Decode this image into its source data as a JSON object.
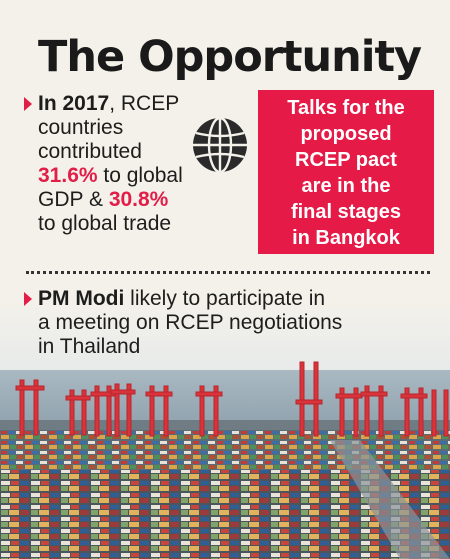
{
  "title": "The Opportunity",
  "stat": {
    "line1_bold": "In 2017",
    "line1_rest": ", RCEP",
    "line2": "countries",
    "line3": "contributed",
    "line4_red": "31.6%",
    "line4_rest": " to global",
    "line5_a": "GDP & ",
    "line5_red": "30.8%",
    "line6": "to global trade"
  },
  "callout": {
    "lines": [
      "Talks for the",
      "proposed",
      "RCEP pact",
      "are in the",
      "final stages",
      "in Bangkok"
    ]
  },
  "modi": {
    "bold": "PM Modi",
    "line1_rest": " likely to participate in",
    "line2": "a meeting on RCEP negotiations",
    "line3": "in Thailand"
  },
  "icons": {
    "globe": "globe-icon",
    "bullet": "triangle-bullet-icon"
  },
  "colors": {
    "accent": "#e51a47",
    "text": "#1d1d1b",
    "background": "#f4f1ea"
  }
}
